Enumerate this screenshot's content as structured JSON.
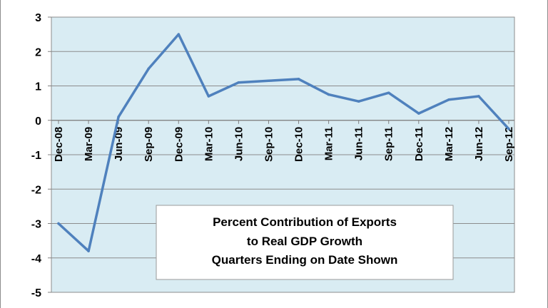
{
  "chart_data": {
    "type": "line",
    "title": "",
    "xlabel": "",
    "ylabel": "",
    "categories": [
      "Dec-08",
      "Mar-09",
      "Jun-09",
      "Sep-09",
      "Dec-09",
      "Mar-10",
      "Jun-10",
      "Sep-10",
      "Dec-10",
      "Mar-11",
      "Jun-11",
      "Sep-11",
      "Dec-11",
      "Mar-12",
      "Jun-12",
      "Sep-12"
    ],
    "series": [
      {
        "values": [
          -3.0,
          -3.8,
          0.1,
          1.5,
          2.5,
          0.7,
          1.1,
          1.15,
          1.2,
          0.75,
          0.55,
          0.8,
          0.2,
          0.6,
          0.7,
          -0.25
        ]
      }
    ],
    "ylim": [
      -5,
      3
    ],
    "yticks": [
      3,
      2,
      1,
      0,
      -1,
      -2,
      -3,
      -4,
      -5
    ],
    "grid": true,
    "annotation": {
      "lines": [
        "Percent Contribution of Exports",
        "to Real GDP Growth",
        "Quarters Ending on Date Shown"
      ]
    },
    "colors": {
      "line": "#4f81bd",
      "plot_background": "#d9ecf3",
      "grid": "#8c8c8c",
      "axis": "#808080",
      "frame_border": "#8c8c8c"
    }
  }
}
